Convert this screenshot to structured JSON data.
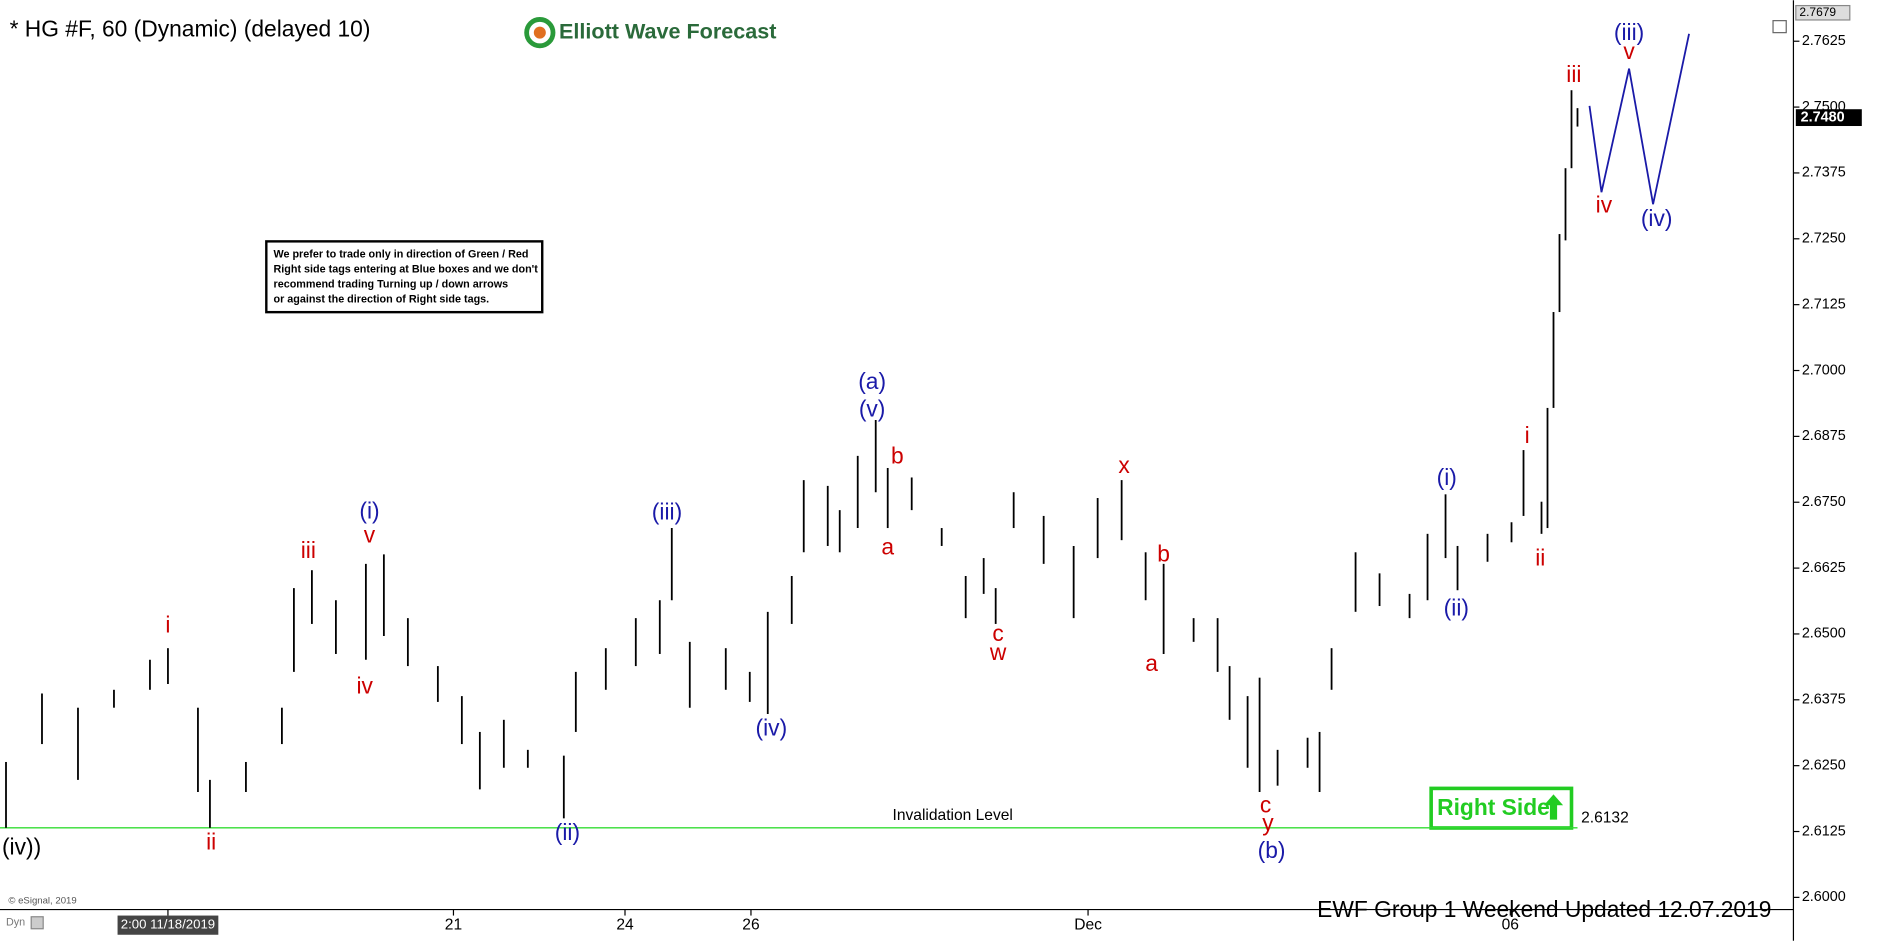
{
  "chart_data": {
    "type": "ohlc",
    "title": "* HG #F, 60 (Dynamic) (delayed 10)",
    "brand": "Elliott Wave Forecast",
    "note": [
      "We prefer to trade only in direction of Green / Red",
      "Right side tags entering at Blue boxes and we don't",
      "recommend trading Turning up / down arrows",
      "or against the direction of Right side tags."
    ],
    "footer": "EWF Group 1  Weekend  Updated 12.07.2019",
    "copyright": "© eSignal, 2019",
    "dyn": "Dyn",
    "right_side": "Right Side",
    "invalidation": {
      "label": "Invalidation Level",
      "value": {
        "value": 2.6132,
        "label": "2.6132"
      },
      "color": "#33dd33"
    },
    "last_price": {
      "value": 2.748,
      "label": "2.7480"
    },
    "top_price": {
      "value": 2.7679,
      "label": "2.7679"
    },
    "color": "#000000",
    "x": [
      1,
      7,
      13,
      19,
      25,
      28,
      33,
      35,
      41,
      47,
      49,
      52,
      56,
      61,
      64,
      68,
      73,
      77,
      80,
      84,
      88,
      94,
      96,
      101,
      106,
      110,
      112,
      115,
      121,
      125,
      128,
      132,
      134,
      138,
      140,
      143,
      146,
      148,
      152,
      157,
      161,
      164,
      166,
      169,
      174,
      179,
      183,
      187,
      191,
      194,
      199,
      203,
      205,
      208,
      210,
      213,
      218,
      220,
      222,
      226,
      230,
      235,
      238,
      241,
      243,
      248,
      252,
      254,
      257,
      258,
      259,
      260,
      261,
      262,
      263
    ],
    "low": [
      2.6132,
      2.6291,
      2.6223,
      2.636,
      2.6394,
      2.6405,
      2.62,
      2.6132,
      2.62,
      2.6291,
      2.6428,
      2.6519,
      2.6462,
      2.6451,
      2.6496,
      2.6439,
      2.6371,
      2.6291,
      2.6205,
      2.6246,
      2.6246,
      2.615,
      2.6314,
      2.6394,
      2.6439,
      2.6462,
      2.6564,
      2.636,
      2.6394,
      2.6371,
      2.6348,
      2.6519,
      2.6655,
      2.6667,
      2.6655,
      2.6701,
      2.6769,
      2.6701,
      2.6735,
      2.6667,
      2.653,
      2.6576,
      2.6519,
      2.6701,
      2.6633,
      2.653,
      2.6644,
      2.6678,
      2.6564,
      2.6462,
      2.6485,
      2.6428,
      2.6337,
      2.6246,
      2.62,
      2.6212,
      2.6246,
      2.62,
      2.6394,
      2.6542,
      2.6553,
      2.653,
      2.6564,
      2.6644,
      2.6583,
      2.6637,
      2.6674,
      2.6724,
      2.669,
      2.6701,
      2.6929,
      2.7111,
      2.7247,
      2.7384,
      2.7463
    ],
    "high": [
      2.6257,
      2.6387,
      2.636,
      2.6394,
      2.6451,
      2.6473,
      2.636,
      2.6223,
      2.6257,
      2.636,
      2.6587,
      2.6621,
      2.6564,
      2.6633,
      2.6651,
      2.653,
      2.6439,
      2.6382,
      2.6314,
      2.6337,
      2.628,
      2.6269,
      2.6428,
      2.6473,
      2.653,
      2.6564,
      2.6701,
      2.6485,
      2.6473,
      2.6428,
      2.6542,
      2.661,
      2.6792,
      2.6781,
      2.6735,
      2.6838,
      2.6906,
      2.6815,
      2.6797,
      2.6701,
      2.661,
      2.6644,
      2.6587,
      2.6769,
      2.6724,
      2.6667,
      2.6758,
      2.6792,
      2.6655,
      2.6633,
      2.653,
      2.653,
      2.6439,
      2.6382,
      2.6417,
      2.628,
      2.6303,
      2.6314,
      2.6473,
      2.6655,
      2.6615,
      2.6576,
      2.669,
      2.6765,
      2.6667,
      2.669,
      2.6712,
      2.6849,
      2.6751,
      2.6929,
      2.7111,
      2.7259,
      2.7384,
      2.7532,
      2.7498
    ],
    "xlim": [
      0,
      299
    ],
    "xticks": [
      {
        "value": 28,
        "label": "2:00 11/18/2019"
      },
      {
        "value": 75.6,
        "label": "21"
      },
      {
        "value": 104.2,
        "label": "24"
      },
      {
        "value": 125.2,
        "label": "26"
      },
      {
        "value": 181.4,
        "label": "Dec"
      },
      {
        "value": 251.8,
        "label": "06"
      }
    ],
    "ylim": [
      2.5945,
      2.768
    ],
    "yticks": [
      {
        "value": 2.6,
        "label": "2.6000"
      },
      {
        "value": 2.6125,
        "label": "2.6125"
      },
      {
        "value": 2.625,
        "label": "2.6250"
      },
      {
        "value": 2.6375,
        "label": "2.6375"
      },
      {
        "value": 2.65,
        "label": "2.6500"
      },
      {
        "value": 2.6625,
        "label": "2.6625"
      },
      {
        "value": 2.675,
        "label": "2.6750"
      },
      {
        "value": 2.6875,
        "label": "2.6875"
      },
      {
        "value": 2.7,
        "label": "2.7000"
      },
      {
        "value": 2.7125,
        "label": "2.7125"
      },
      {
        "value": 2.725,
        "label": "2.7250"
      },
      {
        "value": 2.7375,
        "label": "2.7375"
      },
      {
        "value": 2.75,
        "label": "2.7500"
      },
      {
        "value": 2.7625,
        "label": "2.7625"
      }
    ],
    "wave_labels": [
      {
        "text": "(iv))",
        "color": "#000000"
      },
      {
        "text": "i",
        "color": "#cc0000"
      },
      {
        "text": "ii",
        "color": "#cc0000"
      },
      {
        "text": "iii",
        "color": "#cc0000"
      },
      {
        "text": "iv",
        "color": "#cc0000"
      },
      {
        "text": "v",
        "color": "#cc0000"
      },
      {
        "text": "(i)",
        "color": "#1a1aa8"
      },
      {
        "text": "(ii)",
        "color": "#1a1aa8"
      },
      {
        "text": "(iii)",
        "color": "#1a1aa8"
      },
      {
        "text": "(iv)",
        "color": "#1a1aa8"
      },
      {
        "text": "(v)",
        "color": "#1a1aa8"
      },
      {
        "text": "(a)",
        "color": "#1a1aa8"
      },
      {
        "text": "a",
        "color": "#cc0000"
      },
      {
        "text": "b",
        "color": "#cc0000"
      },
      {
        "text": "c",
        "color": "#cc0000"
      },
      {
        "text": "w",
        "color": "#cc0000"
      },
      {
        "text": "x",
        "color": "#cc0000"
      },
      {
        "text": "b",
        "color": "#cc0000"
      },
      {
        "text": "a",
        "color": "#cc0000"
      },
      {
        "text": "c",
        "color": "#cc0000"
      },
      {
        "text": "y",
        "color": "#cc0000"
      },
      {
        "text": "(b)",
        "color": "#1a1aa8"
      },
      {
        "text": "(i)",
        "color": "#1a1aa8"
      },
      {
        "text": "(ii)",
        "color": "#1a1aa8"
      },
      {
        "text": "i",
        "color": "#cc0000"
      },
      {
        "text": "ii",
        "color": "#cc0000"
      },
      {
        "text": "iii",
        "color": "#cc0000"
      },
      {
        "text": "iv",
        "color": "#cc0000"
      },
      {
        "text": "v",
        "color": "#cc0000"
      },
      {
        "text": "(iii)",
        "color": "#1a1aa8"
      },
      {
        "text": "(iv)",
        "color": "#1a1aa8"
      }
    ]
  }
}
